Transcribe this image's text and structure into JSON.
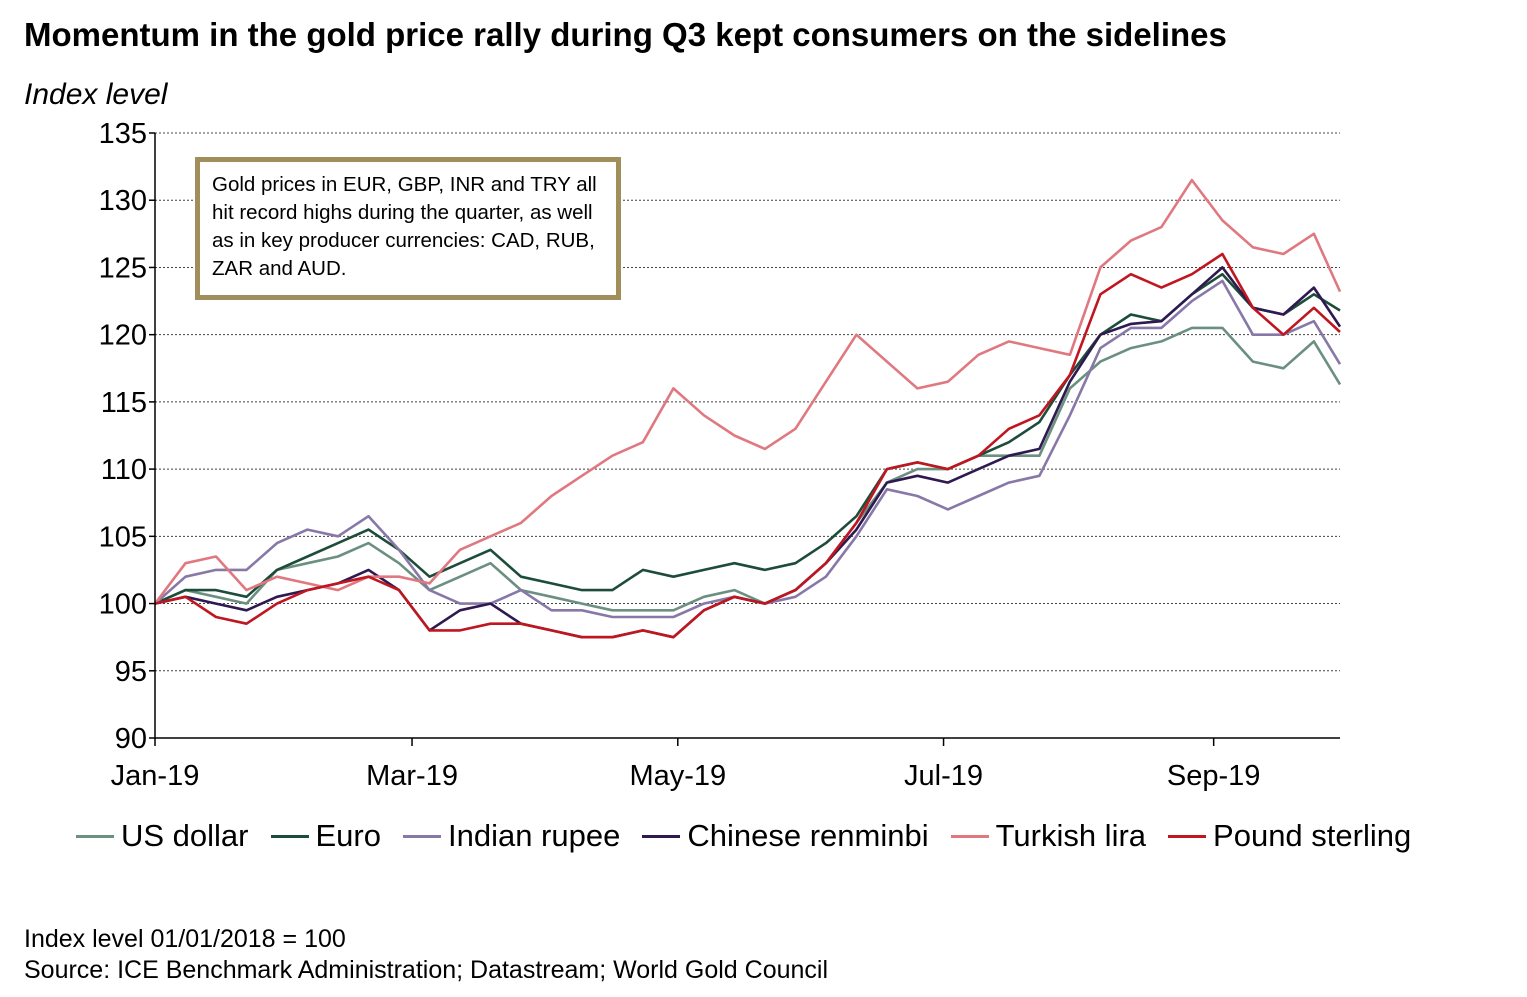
{
  "title": "Momentum in the gold price rally during Q3 kept consumers on the sidelines",
  "callout": "Gold prices in EUR, GBP, INR and TRY all hit record highs during the quarter, as well as in key producer currencies: CAD, RUB, ZAR and AUD.",
  "footnote": {
    "index_note": "Index level 01/01/2018 = 100",
    "source": "Source: ICE Benchmark Administration; Datastream; World Gold Council"
  },
  "chart_data": {
    "type": "line",
    "title": "Momentum in the gold price rally during Q3 kept consumers on the sidelines",
    "ylabel": "Index level",
    "xlabel": "",
    "ylim": [
      90,
      135
    ],
    "yticks": [
      90,
      95,
      100,
      105,
      110,
      115,
      120,
      125,
      130,
      135
    ],
    "xlim": [
      "2019-01-01",
      "2019-09-30"
    ],
    "xticks": [
      {
        "date": "2019-01-01",
        "label": "Jan-19"
      },
      {
        "date": "2019-03-01",
        "label": "Mar-19"
      },
      {
        "date": "2019-05-01",
        "label": "May-19"
      },
      {
        "date": "2019-07-01",
        "label": "Jul-19"
      },
      {
        "date": "2019-09-01",
        "label": "Sep-19"
      }
    ],
    "grid": "horizontal",
    "legend": "bottom",
    "dates": [
      "2019-01-01",
      "2019-01-08",
      "2019-01-15",
      "2019-01-22",
      "2019-01-29",
      "2019-02-05",
      "2019-02-12",
      "2019-02-19",
      "2019-02-26",
      "2019-03-05",
      "2019-03-12",
      "2019-03-19",
      "2019-03-26",
      "2019-04-02",
      "2019-04-09",
      "2019-04-16",
      "2019-04-23",
      "2019-04-30",
      "2019-05-07",
      "2019-05-14",
      "2019-05-21",
      "2019-05-28",
      "2019-06-04",
      "2019-06-11",
      "2019-06-18",
      "2019-06-25",
      "2019-07-02",
      "2019-07-09",
      "2019-07-16",
      "2019-07-23",
      "2019-07-30",
      "2019-08-06",
      "2019-08-13",
      "2019-08-20",
      "2019-08-27",
      "2019-09-03",
      "2019-09-10",
      "2019-09-17",
      "2019-09-24",
      "2019-09-30"
    ],
    "series": [
      {
        "name": "US dollar",
        "color": "#6b9080",
        "values": [
          100,
          101,
          100.5,
          100,
          102.5,
          103,
          103.5,
          104.5,
          103,
          101,
          102,
          103,
          101,
          100.5,
          100,
          99.5,
          99.5,
          99.5,
          100.5,
          101,
          100,
          101,
          103,
          106,
          109,
          110,
          110,
          111,
          111,
          111,
          116,
          118,
          119,
          119.5,
          120.5,
          120.5,
          118,
          117.5,
          119.5,
          116.3
        ]
      },
      {
        "name": "Euro",
        "color": "#1d4d3a",
        "values": [
          100,
          101,
          101,
          100.5,
          102.5,
          103.5,
          104.5,
          105.5,
          104,
          102,
          103,
          104,
          102,
          101.5,
          101,
          101,
          102.5,
          102,
          102.5,
          103,
          102.5,
          103,
          104.5,
          106.5,
          110,
          110.5,
          110,
          111,
          112,
          113.5,
          117,
          120,
          121.5,
          121,
          123,
          124.5,
          122,
          121.5,
          123,
          121.8
        ]
      },
      {
        "name": "Indian rupee",
        "color": "#8878a8",
        "values": [
          100,
          102,
          102.5,
          102.5,
          104.5,
          105.5,
          105,
          106.5,
          104,
          101,
          100,
          100,
          101,
          99.5,
          99.5,
          99,
          99,
          99,
          100,
          100.5,
          100,
          100.5,
          102,
          105,
          108.5,
          108,
          107,
          108,
          109,
          109.5,
          114,
          119,
          120.5,
          120.5,
          122.5,
          124,
          120,
          120,
          121,
          117.8
        ]
      },
      {
        "name": "Chinese renminbi",
        "color": "#2e1a50",
        "values": [
          100,
          100.5,
          100,
          99.5,
          100.5,
          101,
          101.5,
          102.5,
          101,
          98,
          99.5,
          100,
          98.5,
          98,
          97.5,
          97.5,
          98,
          97.5,
          99.5,
          100.5,
          100,
          101,
          103,
          105.5,
          109,
          109.5,
          109,
          110,
          111,
          111.5,
          116.5,
          120,
          120.8,
          121,
          123,
          125,
          122,
          121.5,
          123.5,
          120.6
        ]
      },
      {
        "name": "Turkish lira",
        "color": "#e07880",
        "values": [
          100,
          103,
          103.5,
          101,
          102,
          101.5,
          101,
          102,
          102,
          101.5,
          104,
          105,
          106,
          108,
          109.5,
          111,
          112,
          116,
          114,
          112.5,
          111.5,
          113,
          116.5,
          120,
          118,
          116,
          116.5,
          118.5,
          119.5,
          119,
          118.5,
          125,
          127,
          128,
          131.5,
          128.5,
          126.5,
          126,
          127.5,
          123.2
        ]
      },
      {
        "name": "Pound sterling",
        "color": "#c0161f",
        "values": [
          100,
          100.5,
          99,
          98.5,
          100,
          101,
          101.5,
          102,
          101,
          98,
          98,
          98.5,
          98.5,
          98,
          97.5,
          97.5,
          98,
          97.5,
          99.5,
          100.5,
          100,
          101,
          103,
          106,
          110,
          110.5,
          110,
          111,
          113,
          114,
          117,
          123,
          124.5,
          123.5,
          124.5,
          126,
          122,
          120,
          122,
          120.2
        ]
      }
    ]
  }
}
